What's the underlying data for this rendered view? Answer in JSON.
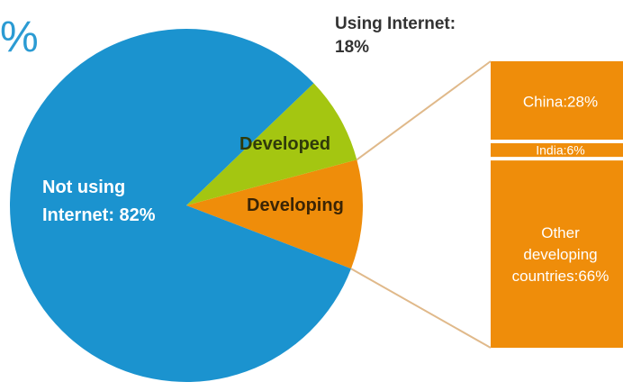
{
  "corner_text": "%",
  "using_internet_label": "Using Internet:",
  "using_internet_value": "18%",
  "colors": {
    "not_using": "#1b93cf",
    "developed": "#a4c611",
    "developing": "#ef8d0a",
    "connector": "#e0b98a",
    "white": "#ffffff"
  },
  "chart_data": [
    {
      "type": "pie",
      "slices": [
        {
          "label": "Not using Internet: 82%",
          "value": 82
        },
        {
          "label": "Developed",
          "value": 8
        },
        {
          "label": "Developing",
          "value": 10
        }
      ]
    },
    {
      "type": "bar",
      "stacked": true,
      "categories": [
        "China:28%",
        "India:6%",
        "Other developing countries:66%"
      ],
      "values": [
        28,
        6,
        66
      ],
      "unit": "%"
    }
  ]
}
